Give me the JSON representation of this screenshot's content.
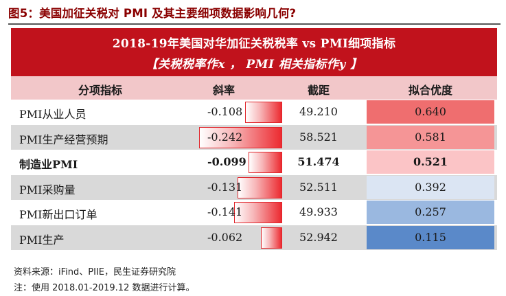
{
  "figure_title": "图5：美国加征关税对 PMI 及其主要细项数据影响几何?",
  "banner": {
    "line1": "2018-19年美国对华加征关税税率 vs PMI细项指标",
    "line2": "【关税税率作x ， PMI 相关指标作y 】"
  },
  "table": {
    "headers": [
      "分项指标",
      "斜率",
      "截距",
      "拟合优度"
    ],
    "rows": [
      {
        "name": "PMI从业人员",
        "slope": "-0.108",
        "intercept": "49.210",
        "r2": "0.640",
        "slope_value": -0.108,
        "r2_color": "#ef6e6f",
        "shaded": false,
        "bold": false
      },
      {
        "name": "PMI生产经营预期",
        "slope": "-0.242",
        "intercept": "58.521",
        "r2": "0.581",
        "slope_value": -0.242,
        "r2_color": "#f59596",
        "shaded": true,
        "bold": false
      },
      {
        "name": "制造业PMI",
        "slope": "-0.099",
        "intercept": "51.474",
        "r2": "0.521",
        "slope_value": -0.099,
        "r2_color": "#fbc4c6",
        "shaded": false,
        "bold": true
      },
      {
        "name": "PMI采购量",
        "slope": "-0.131",
        "intercept": "52.511",
        "r2": "0.392",
        "slope_value": -0.131,
        "r2_color": "#dbe5f3",
        "shaded": true,
        "bold": false
      },
      {
        "name": "PMI新出口订单",
        "slope": "-0.141",
        "intercept": "49.933",
        "r2": "0.257",
        "slope_value": -0.141,
        "r2_color": "#9ab8e0",
        "shaded": false,
        "bold": false
      },
      {
        "name": "PMI生产",
        "slope": "-0.062",
        "intercept": "52.942",
        "r2": "0.115",
        "slope_value": -0.062,
        "r2_color": "#5a89c9",
        "shaded": true,
        "bold": false
      }
    ]
  },
  "footnotes": {
    "source": "资料来源：iFind、PIIE，民生证券研究院",
    "note": "注：使用 2018.01-2019.12 数据进行计算。"
  }
}
